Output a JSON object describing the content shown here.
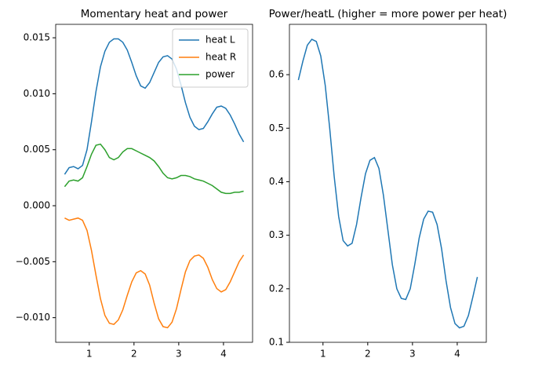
{
  "chart_data": [
    {
      "type": "line",
      "title": "Momentary heat and power",
      "x": [
        0.45,
        0.55,
        0.65,
        0.75,
        0.85,
        0.95,
        1.05,
        1.15,
        1.25,
        1.35,
        1.45,
        1.55,
        1.65,
        1.75,
        1.85,
        1.95,
        2.05,
        2.15,
        2.25,
        2.35,
        2.45,
        2.55,
        2.65,
        2.75,
        2.85,
        2.95,
        3.05,
        3.15,
        3.25,
        3.35,
        3.45,
        3.55,
        3.65,
        3.75,
        3.85,
        3.95,
        4.05,
        4.15,
        4.25,
        4.35,
        4.45
      ],
      "series": [
        {
          "name": "heat L",
          "color": "#1f77b4",
          "values": [
            0.0028,
            0.0034,
            0.0035,
            0.0033,
            0.0036,
            0.005,
            0.0075,
            0.0102,
            0.0124,
            0.0138,
            0.0146,
            0.0149,
            0.0149,
            0.0146,
            0.0139,
            0.0128,
            0.0116,
            0.0107,
            0.0105,
            0.011,
            0.0119,
            0.0128,
            0.0133,
            0.0134,
            0.0131,
            0.0122,
            0.0108,
            0.0092,
            0.0079,
            0.0071,
            0.0068,
            0.0069,
            0.0075,
            0.0082,
            0.0088,
            0.0089,
            0.0087,
            0.0081,
            0.0073,
            0.0064,
            0.0057
          ]
        },
        {
          "name": "heat R",
          "color": "#ff7f0e",
          "values": [
            -0.0011,
            -0.0013,
            -0.0012,
            -0.0011,
            -0.0013,
            -0.0022,
            -0.004,
            -0.0062,
            -0.0083,
            -0.0098,
            -0.0105,
            -0.0106,
            -0.0102,
            -0.0093,
            -0.008,
            -0.0068,
            -0.006,
            -0.0058,
            -0.0061,
            -0.0071,
            -0.0087,
            -0.0101,
            -0.0108,
            -0.0109,
            -0.0104,
            -0.0092,
            -0.0075,
            -0.0059,
            -0.0049,
            -0.0045,
            -0.0044,
            -0.0047,
            -0.0055,
            -0.0066,
            -0.0074,
            -0.0077,
            -0.0075,
            -0.0068,
            -0.0059,
            -0.005,
            -0.0044
          ]
        },
        {
          "name": "power",
          "color": "#2ca02c",
          "values": [
            0.0017,
            0.0022,
            0.0023,
            0.0022,
            0.0025,
            0.0035,
            0.0046,
            0.0054,
            0.0055,
            0.005,
            0.0043,
            0.0041,
            0.0043,
            0.0048,
            0.0051,
            0.0051,
            0.0049,
            0.0047,
            0.0045,
            0.0043,
            0.004,
            0.0035,
            0.0029,
            0.0025,
            0.0024,
            0.0025,
            0.0027,
            0.0027,
            0.0026,
            0.0024,
            0.0023,
            0.0022,
            0.002,
            0.0018,
            0.0015,
            0.0012,
            0.0011,
            0.0011,
            0.0012,
            0.0012,
            0.0013
          ]
        }
      ],
      "xlim": [
        0.25,
        4.65
      ],
      "xticks": [
        1,
        2,
        3,
        4
      ],
      "ylim": [
        -0.0122,
        0.0162
      ],
      "yticks": [
        {
          "value": -0.01,
          "label": "−0.010"
        },
        {
          "value": -0.005,
          "label": "−0.005"
        },
        {
          "value": 0,
          "label": "0.000"
        },
        0.005,
        {
          "value": 0.01,
          "label": "0.010"
        },
        0.015
      ],
      "legend": "upper right"
    },
    {
      "type": "line",
      "title": "Power/heatL (higher = more power per heat)",
      "x": [
        0.45,
        0.55,
        0.65,
        0.75,
        0.85,
        0.95,
        1.05,
        1.15,
        1.25,
        1.35,
        1.45,
        1.55,
        1.65,
        1.75,
        1.85,
        1.95,
        2.05,
        2.15,
        2.25,
        2.35,
        2.45,
        2.55,
        2.65,
        2.75,
        2.85,
        2.95,
        3.05,
        3.15,
        3.25,
        3.35,
        3.45,
        3.55,
        3.65,
        3.75,
        3.85,
        3.95,
        4.05,
        4.15,
        4.25,
        4.35,
        4.45
      ],
      "series": [
        {
          "color": "#1f77b4",
          "values": [
            0.59,
            0.625,
            0.655,
            0.666,
            0.662,
            0.635,
            0.58,
            0.5,
            0.41,
            0.335,
            0.29,
            0.28,
            0.285,
            0.32,
            0.37,
            0.415,
            0.44,
            0.445,
            0.425,
            0.375,
            0.31,
            0.245,
            0.2,
            0.182,
            0.18,
            0.2,
            0.245,
            0.295,
            0.33,
            0.345,
            0.343,
            0.32,
            0.275,
            0.215,
            0.165,
            0.135,
            0.127,
            0.13,
            0.15,
            0.185,
            0.222
          ]
        }
      ],
      "xlim": [
        0.25,
        4.65
      ],
      "xticks": [
        1,
        2,
        3,
        4
      ],
      "ylim": [
        0.1,
        0.694
      ],
      "yticks": [
        0.1,
        0.2,
        0.3,
        0.4,
        0.5,
        0.6
      ]
    }
  ]
}
